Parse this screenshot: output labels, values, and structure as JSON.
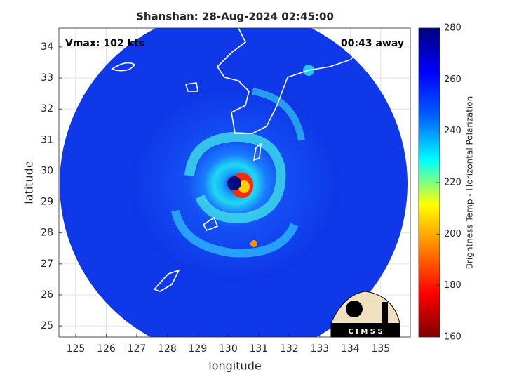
{
  "chart_data": {
    "type": "image",
    "title": "Shanshan: 28-Aug-2024 02:45:00",
    "annotations": [
      "Vmax: 102 kts",
      "00:43 away"
    ],
    "x_label": "longitude",
    "y_label": "latitude",
    "xlim": [
      124.45,
      135.97
    ],
    "xticks": [
      125,
      126,
      127,
      128,
      129,
      130,
      131,
      132,
      133,
      134,
      135
    ],
    "ylim": [
      24.64,
      34.61
    ],
    "yticks": [
      25,
      26,
      27,
      28,
      29,
      30,
      31,
      32,
      33,
      34
    ],
    "grid": true,
    "colorbar": {
      "label": "Brightness Temp - Horizontal Polarization",
      "lim": [
        160,
        280
      ],
      "ticks": [
        160,
        180,
        200,
        220,
        240,
        260,
        280
      ],
      "colormap": [
        "#7f0000",
        "#ff0000",
        "#ff8000",
        "#ffff00",
        "#00ffff",
        "#0060ff",
        "#0000ff",
        "#00007f"
      ]
    },
    "logo_text": "C I M S S"
  }
}
